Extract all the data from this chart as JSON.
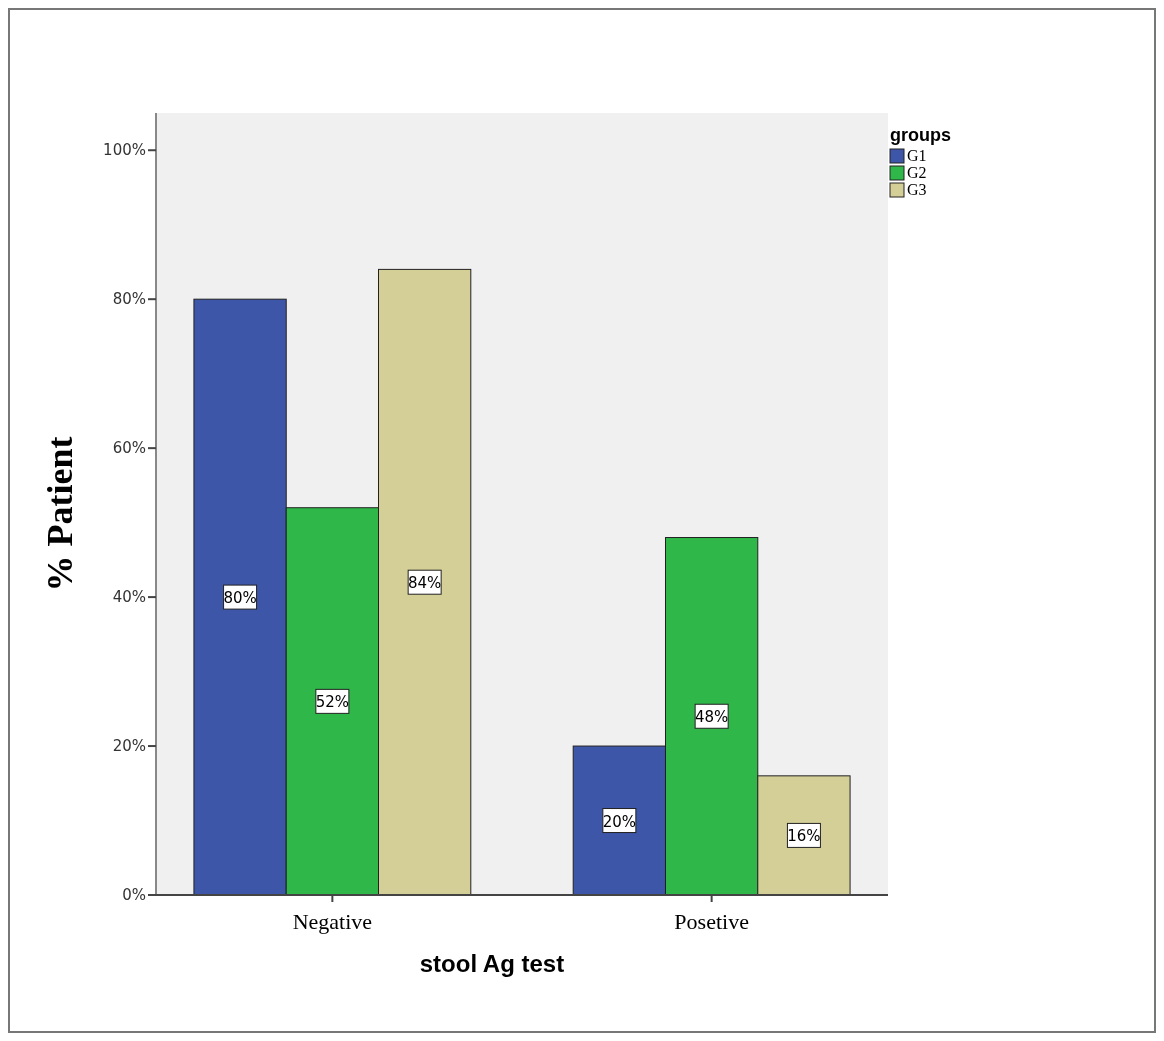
{
  "chart_data": {
    "type": "bar",
    "xlabel": "stool Ag test",
    "ylabel": "% Patient",
    "legend_title": "groups",
    "legend": "top right",
    "categories": [
      "Negative",
      "Posetive"
    ],
    "series": [
      {
        "name": "G1",
        "color": "#3e56a8",
        "values": [
          80,
          20
        ],
        "value_labels": [
          "80%",
          "20%"
        ]
      },
      {
        "name": "G2",
        "color": "#2fb74a",
        "values": [
          52,
          48
        ],
        "value_labels": [
          "52%",
          "48%"
        ]
      },
      {
        "name": "G3",
        "color": "#d4cf97",
        "values": [
          84,
          16
        ],
        "value_labels": [
          "84%",
          "16%"
        ]
      }
    ],
    "ylim": [
      0,
      105
    ],
    "yticks": [
      {
        "value": 0,
        "label": "0%"
      },
      {
        "value": 20,
        "label": "20%"
      },
      {
        "value": 40,
        "label": "40%"
      },
      {
        "value": 60,
        "label": "60%"
      },
      {
        "value": 80,
        "label": "80%"
      },
      {
        "value": 100,
        "label": "100%"
      }
    ],
    "grid": false
  }
}
